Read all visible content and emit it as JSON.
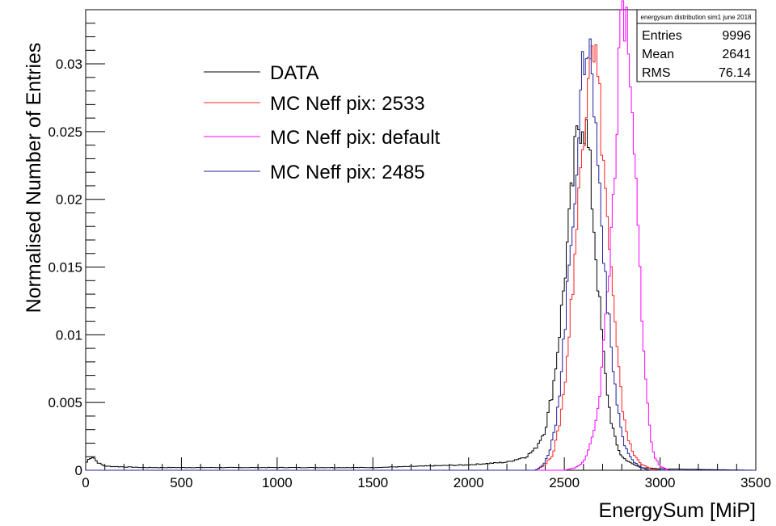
{
  "chart_data": {
    "type": "line",
    "title": "",
    "xlabel": "EnergySum [MiP]",
    "ylabel": "Normalised Number of Entries",
    "xlim": [
      0,
      3500
    ],
    "ylim": [
      0,
      0.034
    ],
    "x_ticks": [
      "0",
      "500",
      "1000",
      "1500",
      "2000",
      "2500",
      "3000",
      "3500"
    ],
    "y_ticks": [
      "0",
      "0.005",
      "0.01",
      "0.015",
      "0.02",
      "0.025",
      "0.03"
    ],
    "legend_placement": "top-left",
    "series": [
      {
        "name": "DATA",
        "color": "#000000",
        "points": [
          [
            0,
            0.0005
          ],
          [
            20,
            0.0009
          ],
          [
            40,
            0.001
          ],
          [
            60,
            0.0006
          ],
          [
            100,
            0.0003
          ],
          [
            300,
            0.0002
          ],
          [
            1000,
            0.0002
          ],
          [
            1500,
            0.0002
          ],
          [
            2000,
            0.0004
          ],
          [
            2200,
            0.0006
          ],
          [
            2300,
            0.001
          ],
          [
            2350,
            0.0016
          ],
          [
            2400,
            0.003
          ],
          [
            2440,
            0.006
          ],
          [
            2470,
            0.0095
          ],
          [
            2500,
            0.014
          ],
          [
            2530,
            0.019
          ],
          [
            2555,
            0.023
          ],
          [
            2575,
            0.0255
          ],
          [
            2595,
            0.0262
          ],
          [
            2615,
            0.025
          ],
          [
            2635,
            0.022
          ],
          [
            2660,
            0.017
          ],
          [
            2685,
            0.012
          ],
          [
            2710,
            0.0075
          ],
          [
            2740,
            0.004
          ],
          [
            2770,
            0.002
          ],
          [
            2800,
            0.001
          ],
          [
            2850,
            0.0005
          ],
          [
            2900,
            0.0002
          ],
          [
            3000,
            0.0001
          ],
          [
            3500,
            0.0
          ]
        ]
      },
      {
        "name": "MC Neff pix: 2533",
        "color": "#ff2020",
        "points": [
          [
            2350,
            0.0
          ],
          [
            2400,
            0.0004
          ],
          [
            2440,
            0.0012
          ],
          [
            2470,
            0.003
          ],
          [
            2500,
            0.006
          ],
          [
            2530,
            0.011
          ],
          [
            2560,
            0.017
          ],
          [
            2590,
            0.023
          ],
          [
            2610,
            0.027
          ],
          [
            2630,
            0.0315
          ],
          [
            2645,
            0.0328
          ],
          [
            2660,
            0.031
          ],
          [
            2680,
            0.028
          ],
          [
            2700,
            0.024
          ],
          [
            2720,
            0.0195
          ],
          [
            2745,
            0.0145
          ],
          [
            2770,
            0.0095
          ],
          [
            2800,
            0.005
          ],
          [
            2830,
            0.0025
          ],
          [
            2860,
            0.0012
          ],
          [
            2900,
            0.0005
          ],
          [
            2950,
            0.0001
          ],
          [
            3000,
            0.0
          ]
        ]
      },
      {
        "name": "MC Neff pix: default",
        "color": "#ff00ff",
        "points": [
          [
            2500,
            0.0
          ],
          [
            2560,
            0.0002
          ],
          [
            2600,
            0.0006
          ],
          [
            2640,
            0.002
          ],
          [
            2680,
            0.005
          ],
          [
            2710,
            0.01
          ],
          [
            2740,
            0.016
          ],
          [
            2760,
            0.0215
          ],
          [
            2780,
            0.0275
          ],
          [
            2795,
            0.032
          ],
          [
            2810,
            0.034
          ],
          [
            2825,
            0.0318
          ],
          [
            2845,
            0.0275
          ],
          [
            2870,
            0.022
          ],
          [
            2890,
            0.016
          ],
          [
            2910,
            0.0105
          ],
          [
            2930,
            0.0055
          ],
          [
            2950,
            0.0025
          ],
          [
            2970,
            0.001
          ],
          [
            3000,
            0.0003
          ],
          [
            3050,
            0.0
          ]
        ]
      },
      {
        "name": "MC Neff pix: 2485",
        "color": "#20209a",
        "points": [
          [
            2350,
            0.0
          ],
          [
            2390,
            0.0004
          ],
          [
            2420,
            0.0012
          ],
          [
            2450,
            0.003
          ],
          [
            2480,
            0.0065
          ],
          [
            2510,
            0.012
          ],
          [
            2540,
            0.018
          ],
          [
            2570,
            0.024
          ],
          [
            2590,
            0.0275
          ],
          [
            2605,
            0.031
          ],
          [
            2620,
            0.0325
          ],
          [
            2640,
            0.03
          ],
          [
            2660,
            0.026
          ],
          [
            2680,
            0.022
          ],
          [
            2700,
            0.0175
          ],
          [
            2725,
            0.0125
          ],
          [
            2750,
            0.008
          ],
          [
            2780,
            0.0045
          ],
          [
            2810,
            0.002
          ],
          [
            2850,
            0.0008
          ],
          [
            2900,
            0.0002
          ],
          [
            2950,
            0.0
          ]
        ]
      }
    ]
  },
  "stats_box": {
    "title": "energysum distribution sim1 june 2018",
    "rows": [
      {
        "label": "Entries",
        "value": "9996"
      },
      {
        "label": "Mean",
        "value": "2641"
      },
      {
        "label": "RMS",
        "value": "76.14"
      }
    ]
  }
}
